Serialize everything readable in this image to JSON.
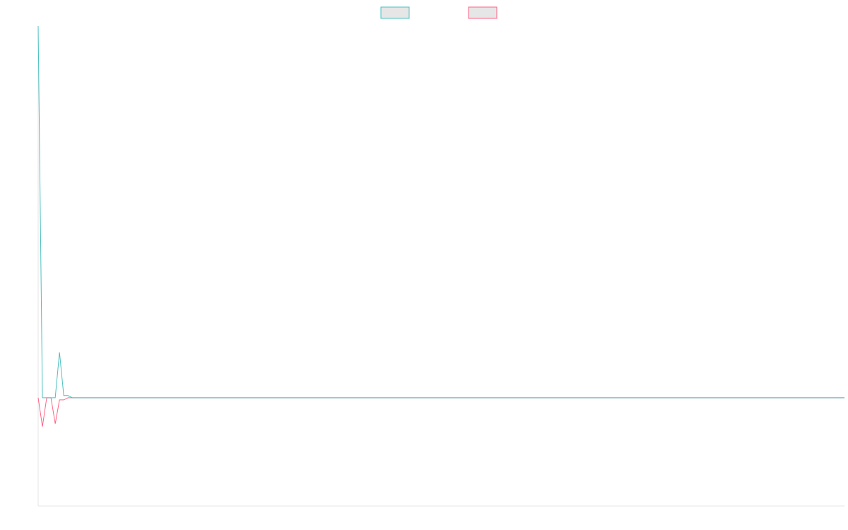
{
  "chart_data": {
    "type": "line",
    "title": "",
    "xlabel": "",
    "ylabel": "",
    "grid": false,
    "legend_position": "top-center",
    "x_range": [
      0,
      189
    ],
    "ylim": [
      -150,
      515
    ],
    "series": [
      {
        "color": "#4bc0c0",
        "values": [
          515,
          0,
          0,
          0,
          0,
          63,
          3,
          3,
          0,
          0,
          0,
          0,
          0,
          0,
          0,
          0,
          0,
          0,
          0,
          0,
          0,
          0,
          0,
          0,
          0,
          0,
          0,
          0,
          0,
          0,
          0,
          0,
          0,
          0,
          0,
          0,
          0,
          0,
          0,
          0,
          0,
          0,
          0,
          0,
          0,
          0,
          0,
          0,
          0,
          0,
          0,
          0,
          0,
          0,
          0,
          0,
          0,
          0,
          0,
          0,
          0,
          0,
          0,
          0,
          0,
          0,
          0,
          0,
          0,
          0,
          0,
          0,
          0,
          0,
          0,
          0,
          0,
          0,
          0,
          0,
          0,
          0,
          0,
          0,
          0,
          0,
          0,
          0,
          0,
          0,
          0,
          0,
          0,
          0,
          0,
          0,
          0,
          0,
          0,
          0,
          0,
          0,
          0,
          0,
          0,
          0,
          0,
          0,
          0,
          0,
          0,
          0,
          0,
          0,
          0,
          0,
          0,
          0,
          0,
          0,
          0,
          0,
          0,
          0,
          0,
          0,
          0,
          0,
          0,
          0,
          0,
          0,
          0,
          0,
          0,
          0,
          0,
          0,
          0,
          0,
          0,
          0,
          0,
          0,
          0,
          0,
          0,
          0,
          0,
          0,
          0,
          0,
          0,
          0,
          0,
          0,
          0,
          0,
          0,
          0,
          0,
          0,
          0,
          0,
          0,
          0,
          0,
          0,
          0,
          0,
          0,
          0,
          0,
          0,
          0,
          0,
          0,
          0,
          0,
          0,
          0,
          0,
          0,
          0,
          0,
          0,
          0,
          0,
          0,
          0
        ]
      },
      {
        "color": "#ff6384",
        "values": [
          0,
          -40,
          0,
          0,
          -36,
          -3,
          -3,
          0,
          0,
          0,
          0,
          0,
          0,
          0,
          0,
          0,
          0,
          0,
          0,
          0,
          0,
          0,
          0,
          0,
          0,
          0,
          0,
          0,
          0,
          0,
          0,
          0,
          0,
          0,
          0,
          0,
          0,
          0,
          0,
          0,
          0,
          0,
          0,
          0,
          0,
          0,
          0,
          0,
          0,
          0,
          0,
          0,
          0,
          0,
          0,
          0,
          0,
          0,
          0,
          0,
          0,
          0,
          0,
          0,
          0,
          0,
          0,
          0,
          0,
          0,
          0,
          0,
          0,
          0,
          0,
          0,
          0,
          0,
          0,
          0,
          0,
          0,
          0,
          0,
          0,
          0,
          0,
          0,
          0,
          0,
          0,
          0,
          0,
          0,
          0,
          0,
          0,
          0,
          0,
          0,
          0,
          0,
          0,
          0,
          0,
          0,
          0,
          0,
          0,
          0,
          0,
          0,
          0,
          0,
          0,
          0,
          0,
          0,
          0,
          0,
          0,
          0,
          0,
          0,
          0,
          0,
          0,
          0,
          0,
          0,
          0,
          0,
          0,
          0,
          0,
          0,
          0,
          0,
          0,
          0,
          0,
          0,
          0,
          0,
          0,
          0,
          0,
          0,
          0,
          0,
          0,
          0,
          0,
          0,
          0,
          0,
          0,
          0,
          0,
          0,
          0,
          0,
          0,
          0,
          0,
          0,
          0,
          0,
          0,
          0,
          0,
          0,
          0,
          0,
          0,
          0,
          0,
          0,
          0,
          0,
          0,
          0,
          0,
          0,
          0,
          0,
          0,
          0,
          0,
          0
        ]
      }
    ]
  }
}
